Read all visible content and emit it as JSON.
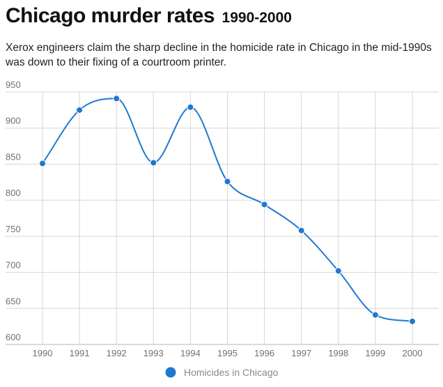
{
  "header": {
    "title": "Chicago murder rates",
    "date_range": "1990-2000",
    "description": "Xerox engineers claim the sharp decline in the homicide rate in Chicago in the mid-1990s was down to their fixing of a courtroom printer."
  },
  "chart_data": {
    "type": "line",
    "categories": [
      "1990",
      "1991",
      "1992",
      "1993",
      "1994",
      "1995",
      "1996",
      "1997",
      "1998",
      "1999",
      "2000"
    ],
    "series": [
      {
        "name": "Homicides in Chicago",
        "values": [
          851,
          925,
          941,
          852,
          929,
          826,
          794,
          758,
          702,
          641,
          632
        ],
        "color": "#1f78d1"
      }
    ],
    "ylim": [
      600,
      950
    ],
    "yticks": [
      600,
      650,
      700,
      750,
      800,
      850,
      900,
      950
    ],
    "xlabel": "",
    "ylabel": "",
    "grid": true,
    "legend": "bottom-center"
  }
}
